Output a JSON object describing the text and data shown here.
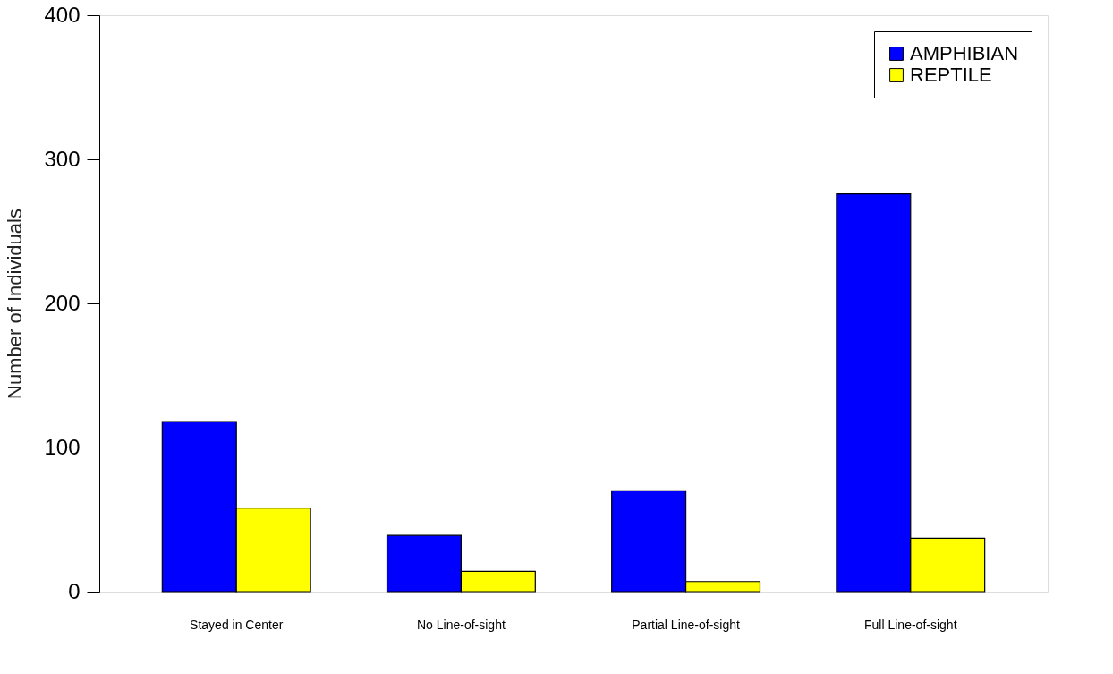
{
  "chart_data": {
    "type": "bar",
    "ylabel": "Number of Individuals",
    "categories": [
      "Stayed in Center",
      "No Line-of-sight",
      "Partial Line-of-sight",
      "Full Line-of-sight"
    ],
    "series": [
      {
        "name": "AMPHIBIAN",
        "color": "#0000ff",
        "values": [
          118,
          39,
          70,
          276
        ]
      },
      {
        "name": "REPTILE",
        "color": "#ffff00",
        "values": [
          58,
          14,
          7,
          37
        ]
      }
    ],
    "ylim": [
      0,
      400
    ],
    "yticks": [
      0,
      100,
      200,
      300,
      400
    ],
    "grid": false,
    "legend": "top right"
  }
}
